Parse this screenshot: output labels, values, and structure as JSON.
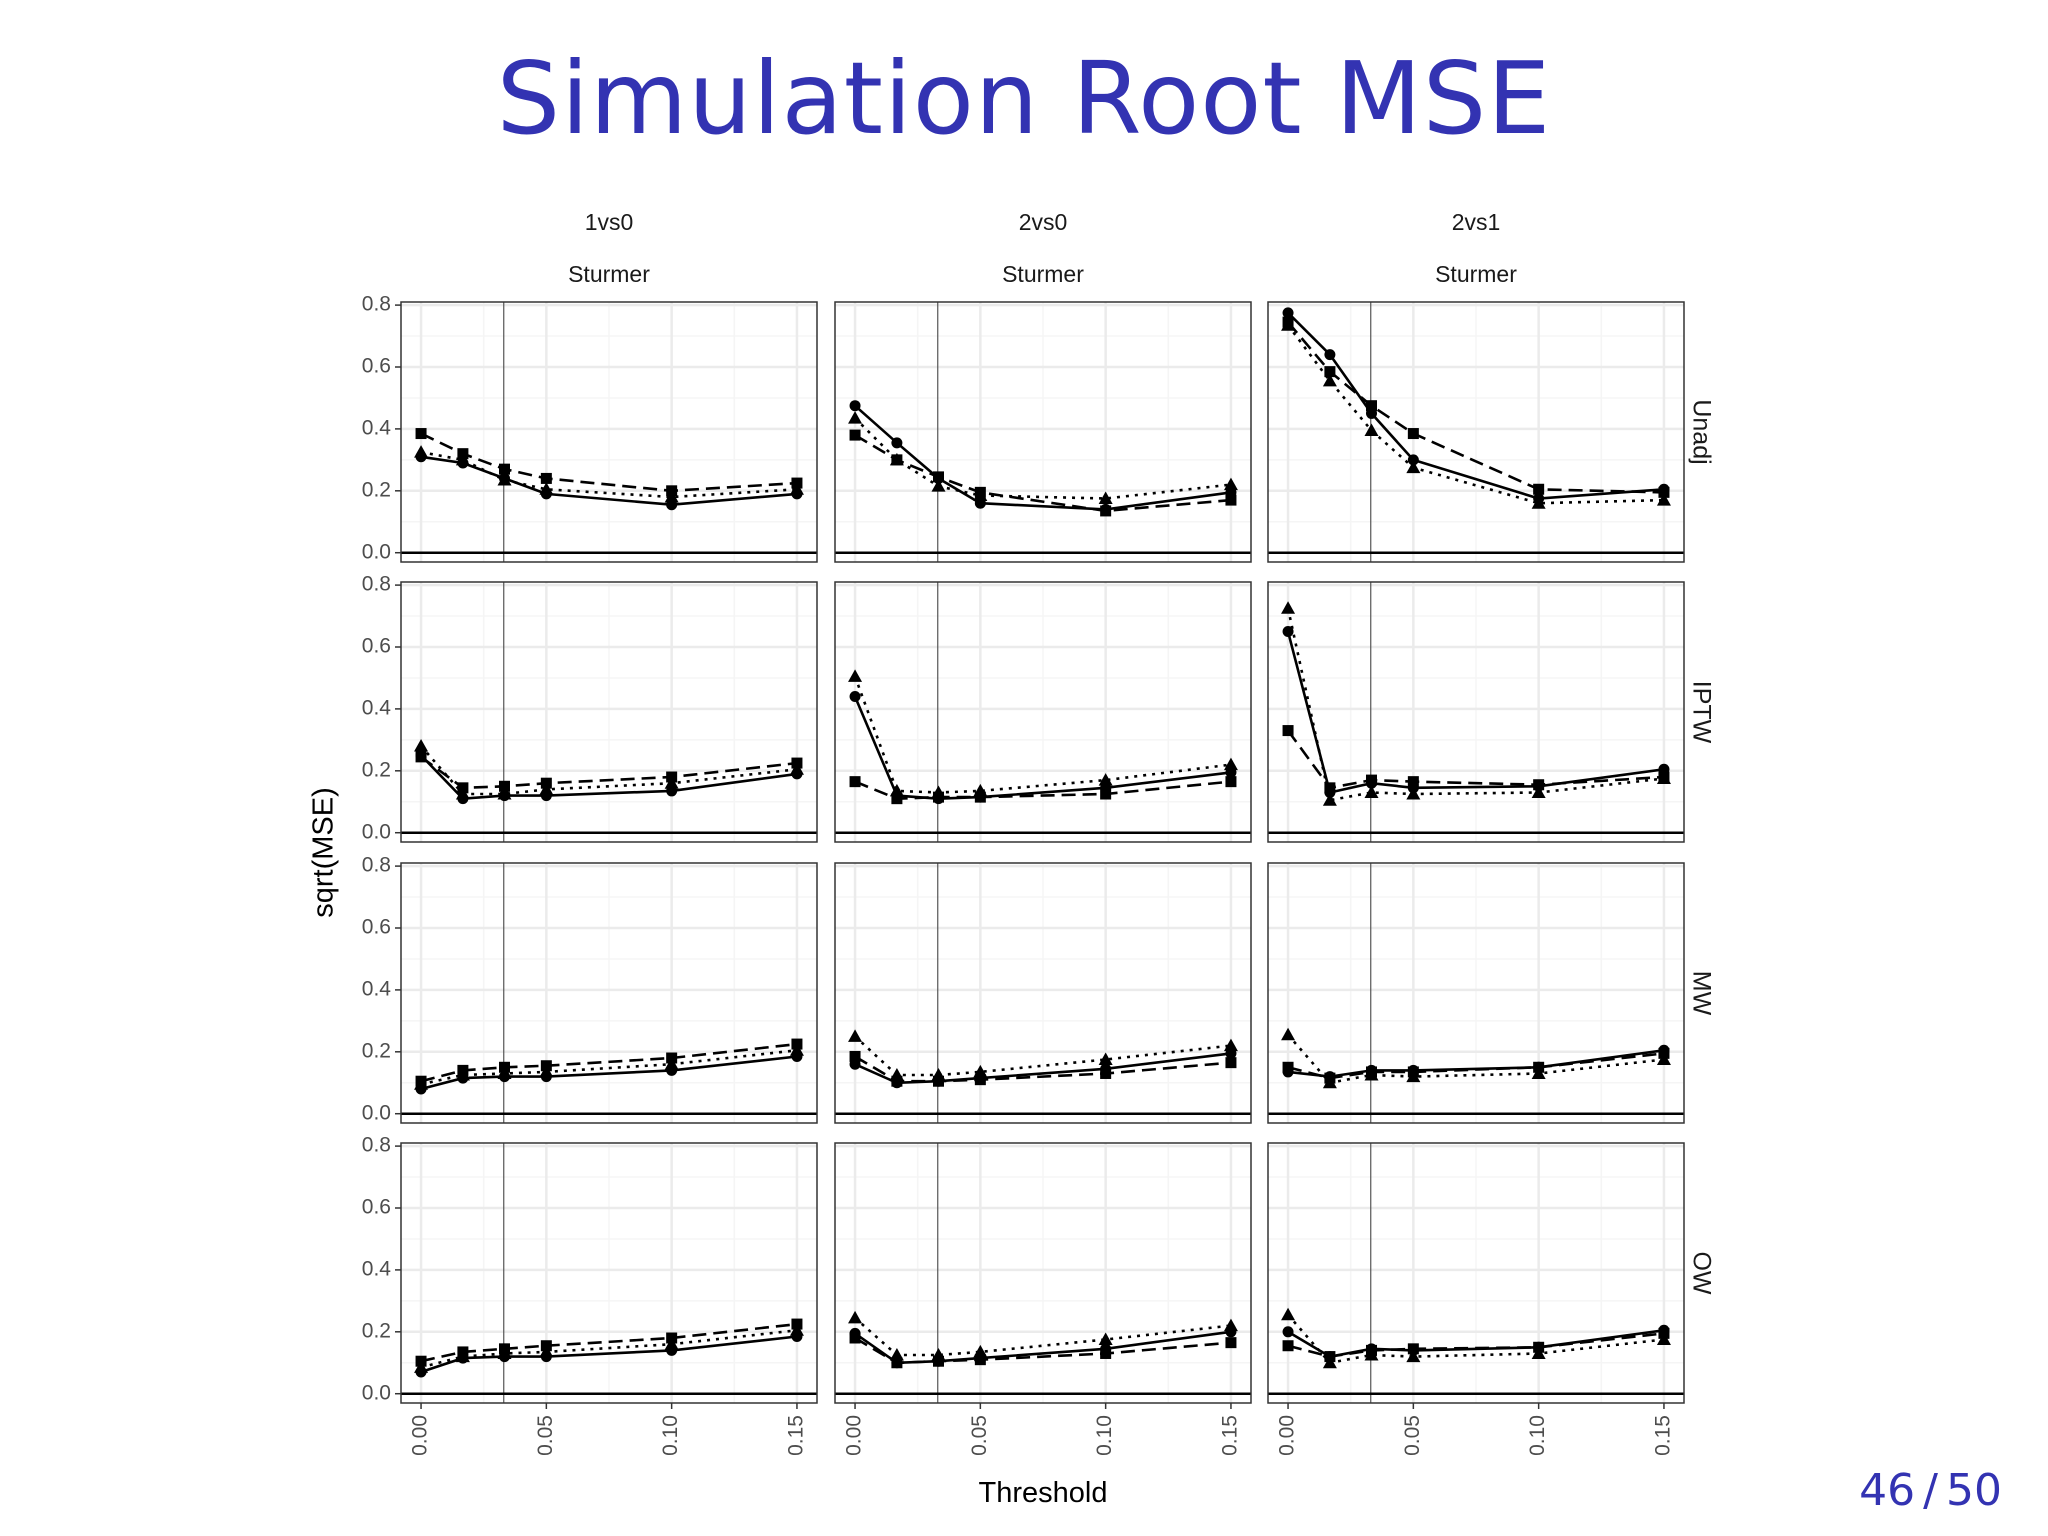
{
  "slide": {
    "title": "Simulation Root MSE",
    "page_current": "46",
    "page_separator": "/",
    "page_total": "50"
  },
  "colors": {
    "title": "#3333b2",
    "series": "#000000",
    "panel_border": "#333333",
    "grid_major": "#ebebeb",
    "grid_minor": "#f5f5f5",
    "reference_line": "#555555"
  },
  "chart_data": {
    "type": "line",
    "facet_grid": true,
    "xlabel": "Threshold",
    "ylabel": "sqrt(MSE)",
    "xlim": [
      -0.008,
      0.158
    ],
    "ylim": [
      -0.03,
      0.81
    ],
    "x_ticks": [
      0.0,
      0.05,
      0.1,
      0.15
    ],
    "x_tick_labels": [
      "0.00",
      "0.05",
      "0.10",
      "0.15"
    ],
    "y_ticks": [
      0.0,
      0.2,
      0.4,
      0.6,
      0.8
    ],
    "y_tick_labels": [
      "0.0",
      "0.2",
      "0.4",
      "0.6",
      "0.8"
    ],
    "reference_vline_x": 0.033,
    "horizontal_zero_line": true,
    "grid": "on",
    "legend": "none",
    "x": [
      0.0,
      0.0167,
      0.0333,
      0.05,
      0.1,
      0.15
    ],
    "column_strips": [
      {
        "top": "1vs0",
        "bottom": "Sturmer"
      },
      {
        "top": "2vs0",
        "bottom": "Sturmer"
      },
      {
        "top": "2vs1",
        "bottom": "Sturmer"
      }
    ],
    "row_strips": [
      "Unadj",
      "IPTW",
      "MW",
      "OW"
    ],
    "series_styles": [
      {
        "line": "solid",
        "marker": "circle"
      },
      {
        "line": "dotted",
        "marker": "triangle"
      },
      {
        "line": "dashed",
        "marker": "square"
      }
    ],
    "panels": [
      [
        {
          "series": [
            {
              "values": [
                0.31,
                0.29,
                0.24,
                0.19,
                0.155,
                0.19
              ]
            },
            {
              "values": [
                0.325,
                0.3,
                0.235,
                0.205,
                0.18,
                0.205
              ]
            },
            {
              "values": [
                0.385,
                0.32,
                0.27,
                0.24,
                0.2,
                0.225
              ]
            }
          ]
        },
        {
          "series": [
            {
              "values": [
                0.475,
                0.355,
                0.24,
                0.16,
                0.14,
                0.195
              ]
            },
            {
              "values": [
                0.435,
                0.3,
                0.215,
                0.185,
                0.175,
                0.22
              ]
            },
            {
              "values": [
                0.38,
                0.3,
                0.245,
                0.195,
                0.135,
                0.17
              ]
            }
          ]
        },
        {
          "series": [
            {
              "values": [
                0.775,
                0.64,
                0.45,
                0.3,
                0.175,
                0.205
              ]
            },
            {
              "values": [
                0.735,
                0.555,
                0.395,
                0.275,
                0.16,
                0.17
              ]
            },
            {
              "values": [
                0.745,
                0.585,
                0.475,
                0.385,
                0.205,
                0.195
              ]
            }
          ]
        }
      ],
      [
        {
          "series": [
            {
              "values": [
                0.25,
                0.11,
                0.12,
                0.12,
                0.135,
                0.19
              ]
            },
            {
              "values": [
                0.28,
                0.125,
                0.125,
                0.14,
                0.16,
                0.205
              ]
            },
            {
              "values": [
                0.245,
                0.145,
                0.15,
                0.16,
                0.18,
                0.225
              ]
            }
          ]
        },
        {
          "series": [
            {
              "values": [
                0.44,
                0.12,
                0.11,
                0.115,
                0.145,
                0.195
              ]
            },
            {
              "values": [
                0.505,
                0.135,
                0.13,
                0.135,
                0.17,
                0.22
              ]
            },
            {
              "values": [
                0.165,
                0.11,
                0.115,
                0.115,
                0.125,
                0.165
              ]
            }
          ]
        },
        {
          "series": [
            {
              "values": [
                0.65,
                0.13,
                0.16,
                0.145,
                0.15,
                0.205
              ]
            },
            {
              "values": [
                0.725,
                0.105,
                0.13,
                0.125,
                0.13,
                0.175
              ]
            },
            {
              "values": [
                0.33,
                0.145,
                0.17,
                0.165,
                0.155,
                0.18
              ]
            }
          ]
        }
      ],
      [
        {
          "series": [
            {
              "values": [
                0.08,
                0.115,
                0.12,
                0.12,
                0.14,
                0.185
              ]
            },
            {
              "values": [
                0.095,
                0.125,
                0.13,
                0.135,
                0.16,
                0.205
              ]
            },
            {
              "values": [
                0.105,
                0.14,
                0.15,
                0.155,
                0.18,
                0.225
              ]
            }
          ]
        },
        {
          "series": [
            {
              "values": [
                0.16,
                0.1,
                0.105,
                0.115,
                0.145,
                0.195
              ]
            },
            {
              "values": [
                0.25,
                0.125,
                0.125,
                0.135,
                0.175,
                0.22
              ]
            },
            {
              "values": [
                0.185,
                0.105,
                0.105,
                0.11,
                0.13,
                0.165
              ]
            }
          ]
        },
        {
          "series": [
            {
              "values": [
                0.135,
                0.12,
                0.14,
                0.14,
                0.15,
                0.205
              ]
            },
            {
              "values": [
                0.255,
                0.1,
                0.125,
                0.12,
                0.13,
                0.175
              ]
            },
            {
              "values": [
                0.15,
                0.115,
                0.135,
                0.135,
                0.15,
                0.195
              ]
            }
          ]
        }
      ],
      [
        {
          "series": [
            {
              "values": [
                0.07,
                0.115,
                0.12,
                0.12,
                0.14,
                0.185
              ]
            },
            {
              "values": [
                0.085,
                0.12,
                0.13,
                0.135,
                0.16,
                0.205
              ]
            },
            {
              "values": [
                0.105,
                0.135,
                0.145,
                0.155,
                0.18,
                0.225
              ]
            }
          ]
        },
        {
          "series": [
            {
              "values": [
                0.195,
                0.1,
                0.105,
                0.115,
                0.145,
                0.2
              ]
            },
            {
              "values": [
                0.245,
                0.125,
                0.125,
                0.135,
                0.175,
                0.22
              ]
            },
            {
              "values": [
                0.18,
                0.1,
                0.105,
                0.11,
                0.13,
                0.165
              ]
            }
          ]
        },
        {
          "series": [
            {
              "values": [
                0.2,
                0.12,
                0.145,
                0.14,
                0.15,
                0.205
              ]
            },
            {
              "values": [
                0.255,
                0.1,
                0.125,
                0.12,
                0.13,
                0.175
              ]
            },
            {
              "values": [
                0.155,
                0.12,
                0.14,
                0.145,
                0.15,
                0.195
              ]
            }
          ]
        }
      ]
    ]
  }
}
